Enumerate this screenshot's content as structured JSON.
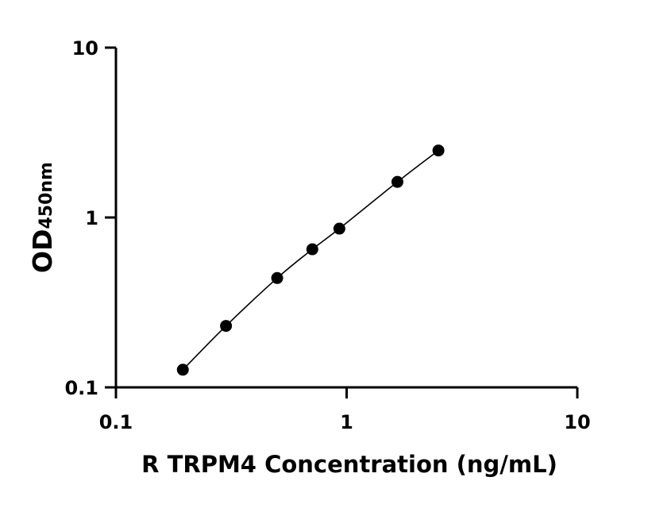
{
  "chart_data": {
    "type": "scatter",
    "xscale": "log",
    "yscale": "log",
    "xlim": [
      0.1,
      10
    ],
    "ylim": [
      0.1,
      10
    ],
    "xticks": [
      0.1,
      1,
      10
    ],
    "yticks": [
      0.1,
      1,
      10
    ],
    "xtick_labels": [
      "0.1",
      "1",
      "10"
    ],
    "ytick_labels": [
      "0.1",
      "1",
      "10"
    ],
    "xlabel": "R TRPM4 Concentration (ng/mL)",
    "ylabel_main": "OD",
    "ylabel_sub": "450nm",
    "grid": false,
    "legend": false,
    "series": [
      {
        "points": [
          {
            "x": 0.195,
            "y": 0.127
          },
          {
            "x": 0.3,
            "y": 0.23
          },
          {
            "x": 0.5,
            "y": 0.44
          },
          {
            "x": 0.71,
            "y": 0.65
          },
          {
            "x": 0.93,
            "y": 0.86
          },
          {
            "x": 1.66,
            "y": 1.62
          },
          {
            "x": 2.5,
            "y": 2.48
          }
        ],
        "fit": "curve",
        "color": "#000000"
      }
    ]
  }
}
